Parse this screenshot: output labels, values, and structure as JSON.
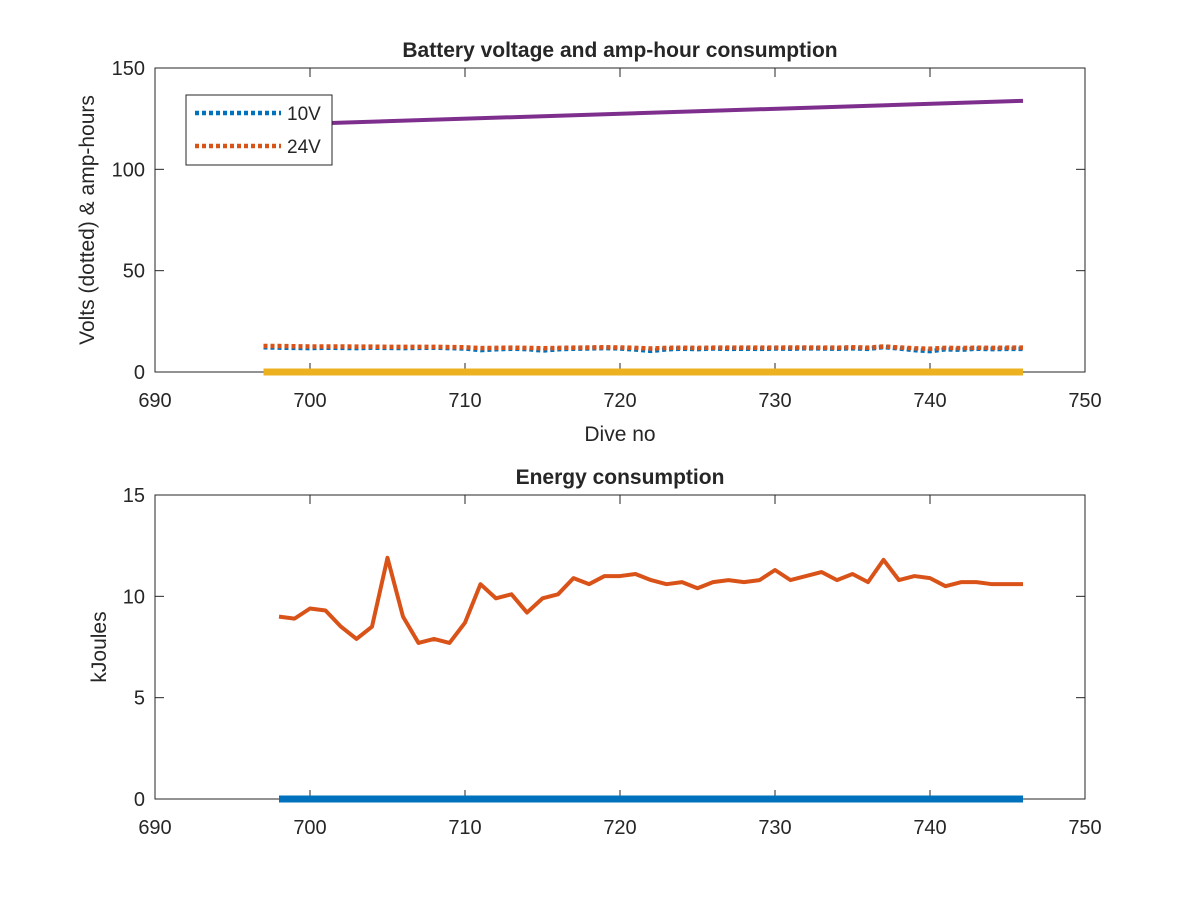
{
  "chart_data": [
    {
      "type": "line",
      "title": "Battery voltage and amp-hour consumption",
      "xlabel": "Dive no",
      "ylabel": "Volts (dotted) & amp-hours",
      "xlim": [
        690,
        750
      ],
      "ylim": [
        0,
        150
      ],
      "xticks": [
        "690",
        "700",
        "710",
        "720",
        "730",
        "740",
        "750"
      ],
      "yticks": [
        "0",
        "50",
        "100",
        "150"
      ],
      "grid": false,
      "legend": {
        "position": "top-left",
        "entries": [
          "10V",
          "24V"
        ]
      },
      "series": [
        {
          "name": "10V",
          "style": "dotted",
          "color": "#0072BD",
          "x": [
            697,
            698,
            699,
            700,
            701,
            702,
            703,
            704,
            705,
            706,
            707,
            708,
            709,
            710,
            711,
            712,
            713,
            714,
            715,
            716,
            717,
            718,
            719,
            720,
            721,
            722,
            723,
            724,
            725,
            726,
            727,
            728,
            729,
            730,
            731,
            732,
            733,
            734,
            735,
            736,
            737,
            738,
            739,
            740,
            741,
            742,
            743,
            744,
            745,
            746
          ],
          "y": [
            12.2,
            12.0,
            11.9,
            11.8,
            12.0,
            11.9,
            11.8,
            12.0,
            11.9,
            11.8,
            11.9,
            12.0,
            11.8,
            11.6,
            10.8,
            11.2,
            11.5,
            11.3,
            10.6,
            11.2,
            11.5,
            11.6,
            11.8,
            11.6,
            11.1,
            10.4,
            11.2,
            11.5,
            11.3,
            11.6,
            11.4,
            11.5,
            11.4,
            11.6,
            11.5,
            11.7,
            11.6,
            11.5,
            11.7,
            11.4,
            12.3,
            11.6,
            10.8,
            10.3,
            11.2,
            11.0,
            11.5,
            11.3,
            11.4,
            11.4
          ]
        },
        {
          "name": "24V",
          "style": "dotted",
          "color": "#D95319",
          "x": [
            697,
            698,
            699,
            700,
            701,
            702,
            703,
            704,
            705,
            706,
            707,
            708,
            709,
            710,
            711,
            712,
            713,
            714,
            715,
            716,
            717,
            718,
            719,
            720,
            721,
            722,
            723,
            724,
            725,
            726,
            727,
            728,
            729,
            730,
            731,
            732,
            733,
            734,
            735,
            736,
            737,
            738,
            739,
            740,
            741,
            742,
            743,
            744,
            745,
            746
          ],
          "y": [
            12.8,
            12.8,
            12.7,
            12.6,
            12.6,
            12.6,
            12.5,
            12.5,
            12.4,
            12.4,
            12.4,
            12.4,
            12.3,
            12.2,
            11.8,
            11.9,
            12.0,
            11.9,
            11.7,
            11.9,
            12.0,
            12.1,
            12.2,
            12.1,
            11.9,
            11.6,
            11.9,
            12.0,
            11.9,
            12.0,
            12.0,
            12.0,
            12.0,
            12.0,
            12.1,
            12.1,
            12.0,
            12.0,
            12.2,
            12.0,
            12.6,
            12.1,
            11.7,
            11.5,
            11.9,
            11.8,
            12.0,
            11.9,
            12.0,
            12.0
          ]
        },
        {
          "style": "solid",
          "color": "#7E2F8E",
          "x": [
            697,
            746
          ],
          "y": [
            121.8,
            133.8
          ]
        },
        {
          "style": "solid",
          "color": "#EDB120",
          "x": [
            697,
            746
          ],
          "y": [
            0,
            0
          ]
        }
      ]
    },
    {
      "type": "line",
      "title": "Energy consumption",
      "xlabel": "",
      "ylabel": "kJoules",
      "xlim": [
        690,
        750
      ],
      "ylim": [
        0,
        15
      ],
      "xticks": [
        "690",
        "700",
        "710",
        "720",
        "730",
        "740",
        "750"
      ],
      "yticks": [
        "0",
        "5",
        "10",
        "15"
      ],
      "grid": false,
      "series": [
        {
          "style": "solid",
          "color": "#0072BD",
          "x": [
            698,
            746
          ],
          "y": [
            0,
            0
          ]
        },
        {
          "style": "solid",
          "color": "#D95319",
          "x": [
            698,
            699,
            700,
            701,
            702,
            703,
            704,
            705,
            706,
            707,
            708,
            709,
            710,
            711,
            712,
            713,
            714,
            715,
            716,
            717,
            718,
            719,
            720,
            721,
            722,
            723,
            724,
            725,
            726,
            727,
            728,
            729,
            730,
            731,
            732,
            733,
            734,
            735,
            736,
            737,
            738,
            739,
            740,
            741,
            742,
            743,
            744,
            745,
            746
          ],
          "y": [
            9.0,
            8.9,
            9.4,
            9.3,
            8.5,
            7.9,
            8.5,
            11.9,
            9.0,
            7.7,
            7.9,
            7.7,
            8.7,
            10.6,
            9.9,
            10.1,
            9.2,
            9.9,
            10.1,
            10.9,
            10.6,
            11.0,
            11.0,
            11.1,
            10.8,
            10.6,
            10.7,
            10.4,
            10.7,
            10.8,
            10.7,
            10.8,
            11.3,
            10.8,
            11.0,
            11.2,
            10.8,
            11.1,
            10.7,
            11.8,
            10.8,
            11.0,
            10.9,
            10.5,
            10.7,
            10.7,
            10.6,
            10.6,
            10.6
          ]
        }
      ]
    }
  ]
}
